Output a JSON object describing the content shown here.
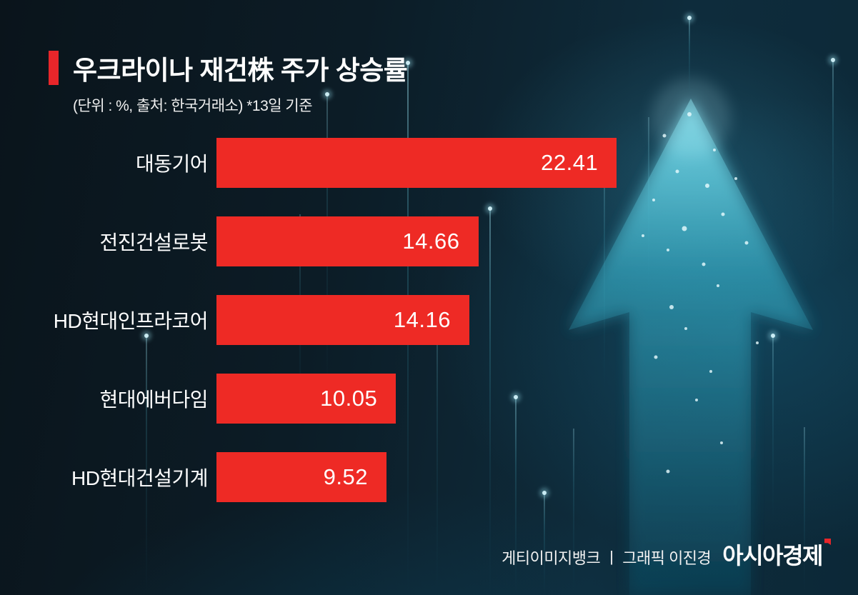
{
  "header": {
    "title": "우크라이나 재건株 주가 상승률",
    "subtitle": "(단위 : %, 출처: 한국거래소)  *13일 기준"
  },
  "chart_data": {
    "type": "bar",
    "orientation": "horizontal",
    "title": "우크라이나 재건株 주가 상승률",
    "subtitle_note": "(단위 : %, 출처: 한국거래소) *13일 기준",
    "categories": [
      "대동기어",
      "전진건설로봇",
      "HD현대인프라코어",
      "현대에버다임",
      "HD현대건설기계"
    ],
    "values": [
      22.41,
      14.66,
      14.16,
      10.05,
      9.52
    ],
    "unit": "%",
    "as_of": "13일 기준",
    "source": "한국거래소",
    "xlim": [
      0,
      25
    ],
    "grid": false,
    "legend": false,
    "value_label_position": "inside-right",
    "bar_color": "#ee2a25"
  },
  "footer": {
    "credit": "게티이미지뱅크 ㅣ 그래픽 이진경",
    "logo": "아시아경제"
  },
  "colors": {
    "background_dark": "#0a141b",
    "background_teal": "#0e2c3c",
    "bar": "#ee2a25",
    "accent": "#e8262a",
    "arrow_glow": "#4fd9ef",
    "text": "#ffffff"
  }
}
